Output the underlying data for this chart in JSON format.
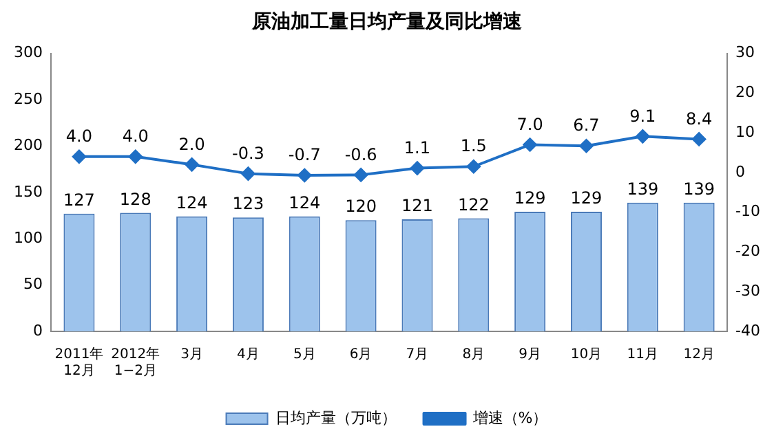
{
  "chart_data": {
    "type": "bar",
    "title": "原油加工量日均产量及同比增速",
    "categories": [
      "2011年\n12月",
      "2012年\n1−2月",
      "3月",
      "4月",
      "5月",
      "6月",
      "7月",
      "8月",
      "9月",
      "10月",
      "11月",
      "12月"
    ],
    "series": [
      {
        "name": "日均产量（万吨）",
        "color": "#9dc3ec",
        "values": [
          127,
          128,
          124,
          123,
          124,
          120,
          121,
          122,
          129,
          129,
          139,
          139
        ],
        "value_labels": [
          "127",
          "128",
          "124",
          "123",
          "124",
          "120",
          "121",
          "122",
          "129",
          "129",
          "139",
          "139"
        ]
      },
      {
        "name": "增速（%）",
        "type": "line",
        "axis": "y2",
        "color": "#1f6fc5",
        "marker": "diamond",
        "values": [
          4.0,
          4.0,
          2.0,
          -0.3,
          -0.7,
          -0.6,
          1.1,
          1.5,
          7.0,
          6.7,
          9.1,
          8.4
        ],
        "value_labels": [
          "4.0",
          "4.0",
          "2.0",
          "-0.3",
          "-0.7",
          "-0.6",
          "1.1",
          "1.5",
          "7.0",
          "6.7",
          "9.1",
          "8.4"
        ]
      }
    ],
    "ylim": [
      0,
      300
    ],
    "yticks": [
      0,
      50,
      100,
      150,
      200,
      250,
      300
    ],
    "y2lim": [
      -40,
      30
    ],
    "y2ticks": [
      -40,
      -30,
      -20,
      -10,
      0,
      10,
      20,
      30
    ],
    "grid": false,
    "legend": "bottom"
  }
}
